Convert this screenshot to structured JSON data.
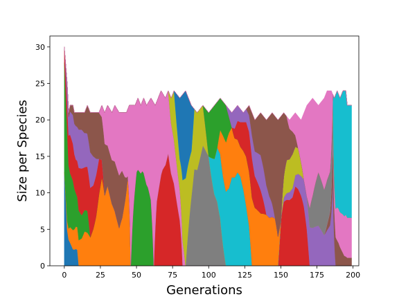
{
  "chart_data": {
    "type": "area",
    "stacked": true,
    "title": "",
    "xlabel": "Generations",
    "ylabel": "Size per Species",
    "xlim": [
      -10,
      204
    ],
    "ylim": [
      0,
      31.5
    ],
    "xticks": [
      0,
      25,
      50,
      75,
      100,
      125,
      150,
      175,
      200
    ],
    "yticks": [
      0,
      5,
      10,
      15,
      20,
      25,
      30
    ],
    "grid": false,
    "legend": "none",
    "total_population": [
      {
        "x": 0,
        "y": 30
      },
      {
        "x": 2,
        "y": 25
      },
      {
        "x": 3,
        "y": 21
      },
      {
        "x": 4,
        "y": 22
      },
      {
        "x": 6,
        "y": 22
      },
      {
        "x": 7,
        "y": 21
      },
      {
        "x": 14,
        "y": 21
      },
      {
        "x": 16,
        "y": 22
      },
      {
        "x": 18,
        "y": 21
      },
      {
        "x": 24,
        "y": 21
      },
      {
        "x": 26,
        "y": 22
      },
      {
        "x": 28,
        "y": 21
      },
      {
        "x": 30,
        "y": 22
      },
      {
        "x": 33,
        "y": 21
      },
      {
        "x": 35,
        "y": 22
      },
      {
        "x": 38,
        "y": 21
      },
      {
        "x": 43,
        "y": 21
      },
      {
        "x": 45,
        "y": 22
      },
      {
        "x": 49,
        "y": 22
      },
      {
        "x": 51,
        "y": 23
      },
      {
        "x": 53,
        "y": 22
      },
      {
        "x": 55,
        "y": 23
      },
      {
        "x": 57,
        "y": 22
      },
      {
        "x": 60,
        "y": 23
      },
      {
        "x": 63,
        "y": 22
      },
      {
        "x": 67,
        "y": 24
      },
      {
        "x": 70,
        "y": 23
      },
      {
        "x": 72,
        "y": 24
      },
      {
        "x": 74,
        "y": 23
      },
      {
        "x": 76,
        "y": 24
      },
      {
        "x": 80,
        "y": 23
      },
      {
        "x": 84,
        "y": 24
      },
      {
        "x": 88,
        "y": 22
      },
      {
        "x": 92,
        "y": 21
      },
      {
        "x": 96,
        "y": 22
      },
      {
        "x": 100,
        "y": 21
      },
      {
        "x": 104,
        "y": 22
      },
      {
        "x": 108,
        "y": 23
      },
      {
        "x": 112,
        "y": 22
      },
      {
        "x": 116,
        "y": 21
      },
      {
        "x": 120,
        "y": 22
      },
      {
        "x": 124,
        "y": 21
      },
      {
        "x": 128,
        "y": 22
      },
      {
        "x": 132,
        "y": 20
      },
      {
        "x": 136,
        "y": 21
      },
      {
        "x": 140,
        "y": 20
      },
      {
        "x": 144,
        "y": 21
      },
      {
        "x": 148,
        "y": 20
      },
      {
        "x": 152,
        "y": 21
      },
      {
        "x": 156,
        "y": 20
      },
      {
        "x": 160,
        "y": 21
      },
      {
        "x": 164,
        "y": 20
      },
      {
        "x": 168,
        "y": 22
      },
      {
        "x": 172,
        "y": 23
      },
      {
        "x": 176,
        "y": 22
      },
      {
        "x": 180,
        "y": 23
      },
      {
        "x": 182,
        "y": 24
      },
      {
        "x": 185,
        "y": 24
      },
      {
        "x": 187,
        "y": 23
      },
      {
        "x": 189,
        "y": 24
      },
      {
        "x": 191,
        "y": 23
      },
      {
        "x": 193,
        "y": 24
      },
      {
        "x": 195,
        "y": 24
      },
      {
        "x": 196,
        "y": 22
      },
      {
        "x": 199,
        "y": 22
      }
    ],
    "series": [
      {
        "color": "#1f77b4",
        "points": [
          {
            "x": 0,
            "y": 12
          },
          {
            "x": 2,
            "y": 4
          },
          {
            "x": 4,
            "y": 3
          },
          {
            "x": 6,
            "y": 2
          },
          {
            "x": 9,
            "y": 2
          },
          {
            "x": 10,
            "y": 0
          }
        ]
      },
      {
        "color": "#ff7f0e",
        "points": [
          {
            "x": 0,
            "y": 0
          },
          {
            "x": 4,
            "y": 2
          },
          {
            "x": 10,
            "y": 3
          },
          {
            "x": 14,
            "y": 4
          },
          {
            "x": 18,
            "y": 2
          },
          {
            "x": 22,
            "y": 3
          },
          {
            "x": 26,
            "y": 5
          },
          {
            "x": 28,
            "y": 3
          },
          {
            "x": 30,
            "y": 4
          },
          {
            "x": 34,
            "y": 3
          },
          {
            "x": 38,
            "y": 2
          },
          {
            "x": 40,
            "y": 3
          },
          {
            "x": 44,
            "y": 5
          },
          {
            "x": 46,
            "y": 0
          }
        ]
      },
      {
        "color": "#2ca02c",
        "points": [
          {
            "x": 0,
            "y": 14
          },
          {
            "x": 2,
            "y": 10
          },
          {
            "x": 4,
            "y": 7
          },
          {
            "x": 6,
            "y": 6
          },
          {
            "x": 8,
            "y": 4
          },
          {
            "x": 12,
            "y": 3
          },
          {
            "x": 16,
            "y": 2
          },
          {
            "x": 18,
            "y": 0
          },
          {
            "x": 46,
            "y": 0
          },
          {
            "x": 48,
            "y": 2
          },
          {
            "x": 50,
            "y": 4
          },
          {
            "x": 54,
            "y": 5
          },
          {
            "x": 58,
            "y": 4
          },
          {
            "x": 60,
            "y": 3
          },
          {
            "x": 62,
            "y": 0
          }
        ]
      },
      {
        "color": "#d62728",
        "points": [
          {
            "x": 0,
            "y": 2
          },
          {
            "x": 2,
            "y": 3
          },
          {
            "x": 4,
            "y": 5
          },
          {
            "x": 8,
            "y": 4
          },
          {
            "x": 12,
            "y": 6
          },
          {
            "x": 16,
            "y": 4
          },
          {
            "x": 20,
            "y": 3
          },
          {
            "x": 24,
            "y": 2
          },
          {
            "x": 28,
            "y": 0
          },
          {
            "x": 62,
            "y": 0
          },
          {
            "x": 64,
            "y": 3
          },
          {
            "x": 68,
            "y": 5
          },
          {
            "x": 72,
            "y": 6
          },
          {
            "x": 76,
            "y": 5
          },
          {
            "x": 80,
            "y": 3
          },
          {
            "x": 82,
            "y": 0
          },
          {
            "x": 148,
            "y": 0
          },
          {
            "x": 152,
            "y": 3
          },
          {
            "x": 156,
            "y": 5
          },
          {
            "x": 160,
            "y": 7
          },
          {
            "x": 164,
            "y": 5
          },
          {
            "x": 168,
            "y": 2
          },
          {
            "x": 170,
            "y": 0
          }
        ]
      },
      {
        "color": "#9467bd",
        "points": [
          {
            "x": 0,
            "y": 0
          },
          {
            "x": 2,
            "y": 2
          },
          {
            "x": 4,
            "y": 3
          },
          {
            "x": 8,
            "y": 4
          },
          {
            "x": 12,
            "y": 5
          },
          {
            "x": 16,
            "y": 3
          },
          {
            "x": 20,
            "y": 2
          },
          {
            "x": 24,
            "y": 0
          },
          {
            "x": 150,
            "y": 0
          },
          {
            "x": 160,
            "y": 1
          },
          {
            "x": 170,
            "y": 2
          },
          {
            "x": 176,
            "y": 3
          },
          {
            "x": 180,
            "y": 2
          },
          {
            "x": 186,
            "y": 2
          },
          {
            "x": 188,
            "y": 0
          }
        ]
      },
      {
        "color": "#8c564b",
        "points": [
          {
            "x": 0,
            "y": 0
          },
          {
            "x": 10,
            "y": 2
          },
          {
            "x": 20,
            "y": 3
          },
          {
            "x": 30,
            "y": 2
          },
          {
            "x": 40,
            "y": 3
          },
          {
            "x": 44,
            "y": 0
          },
          {
            "x": 180,
            "y": 0
          },
          {
            "x": 186,
            "y": 1
          },
          {
            "x": 190,
            "y": 2
          },
          {
            "x": 194,
            "y": 1
          },
          {
            "x": 199,
            "y": 1
          }
        ]
      },
      {
        "color": "#e377c2",
        "points": [
          {
            "x": 24,
            "y": 0
          },
          {
            "x": 30,
            "y": 2
          },
          {
            "x": 36,
            "y": 3
          },
          {
            "x": 42,
            "y": 4
          },
          {
            "x": 50,
            "y": 3
          },
          {
            "x": 56,
            "y": 4
          },
          {
            "x": 62,
            "y": 5
          },
          {
            "x": 68,
            "y": 4
          },
          {
            "x": 74,
            "y": 3
          },
          {
            "x": 80,
            "y": 2
          },
          {
            "x": 84,
            "y": 0
          },
          {
            "x": 186,
            "y": 0
          },
          {
            "x": 190,
            "y": 3
          },
          {
            "x": 194,
            "y": 4
          },
          {
            "x": 196,
            "y": 5
          },
          {
            "x": 199,
            "y": 5
          }
        ]
      },
      {
        "color": "#7f7f7f",
        "points": [
          {
            "x": 84,
            "y": 0
          },
          {
            "x": 88,
            "y": 3
          },
          {
            "x": 92,
            "y": 5
          },
          {
            "x": 96,
            "y": 6
          },
          {
            "x": 100,
            "y": 5
          },
          {
            "x": 104,
            "y": 4
          },
          {
            "x": 108,
            "y": 3
          },
          {
            "x": 112,
            "y": 0
          },
          {
            "x": 168,
            "y": 0
          },
          {
            "x": 172,
            "y": 2
          },
          {
            "x": 176,
            "y": 4
          },
          {
            "x": 180,
            "y": 3
          },
          {
            "x": 184,
            "y": 2
          },
          {
            "x": 188,
            "y": 0
          }
        ]
      },
      {
        "color": "#bcbd22",
        "points": [
          {
            "x": 72,
            "y": 0
          },
          {
            "x": 76,
            "y": 3
          },
          {
            "x": 80,
            "y": 2
          },
          {
            "x": 84,
            "y": 3
          },
          {
            "x": 88,
            "y": 2
          },
          {
            "x": 92,
            "y": 3
          },
          {
            "x": 96,
            "y": 2
          },
          {
            "x": 100,
            "y": 0
          },
          {
            "x": 150,
            "y": 0
          },
          {
            "x": 154,
            "y": 2
          },
          {
            "x": 158,
            "y": 3
          },
          {
            "x": 162,
            "y": 2
          },
          {
            "x": 166,
            "y": 0
          }
        ]
      },
      {
        "color": "#17becf",
        "points": [
          {
            "x": 100,
            "y": 0
          },
          {
            "x": 104,
            "y": 2
          },
          {
            "x": 108,
            "y": 4
          },
          {
            "x": 112,
            "y": 6
          },
          {
            "x": 116,
            "y": 8
          },
          {
            "x": 120,
            "y": 10
          },
          {
            "x": 124,
            "y": 8
          },
          {
            "x": 128,
            "y": 4
          },
          {
            "x": 130,
            "y": 0
          },
          {
            "x": 186,
            "y": 0
          },
          {
            "x": 188,
            "y": 6
          },
          {
            "x": 190,
            "y": 10
          },
          {
            "x": 193,
            "y": 12
          },
          {
            "x": 196,
            "y": 14
          },
          {
            "x": 199,
            "y": 14
          }
        ]
      },
      {
        "color": "#1f77b4",
        "points": [
          {
            "x": 76,
            "y": 0
          },
          {
            "x": 80,
            "y": 4
          },
          {
            "x": 84,
            "y": 3
          },
          {
            "x": 88,
            "y": 2
          },
          {
            "x": 90,
            "y": 0
          }
        ]
      },
      {
        "color": "#ff7f0e",
        "points": [
          {
            "x": 106,
            "y": 0
          },
          {
            "x": 110,
            "y": 3
          },
          {
            "x": 114,
            "y": 5
          },
          {
            "x": 118,
            "y": 4
          },
          {
            "x": 122,
            "y": 3
          },
          {
            "x": 126,
            "y": 5
          },
          {
            "x": 130,
            "y": 6
          },
          {
            "x": 134,
            "y": 5
          },
          {
            "x": 138,
            "y": 4
          },
          {
            "x": 142,
            "y": 3
          },
          {
            "x": 146,
            "y": 2
          },
          {
            "x": 150,
            "y": 0
          }
        ]
      },
      {
        "color": "#2ca02c",
        "points": [
          {
            "x": 96,
            "y": 0
          },
          {
            "x": 100,
            "y": 2
          },
          {
            "x": 104,
            "y": 3
          },
          {
            "x": 108,
            "y": 2
          },
          {
            "x": 112,
            "y": 3
          },
          {
            "x": 116,
            "y": 0
          }
        ]
      },
      {
        "color": "#d62728",
        "points": [
          {
            "x": 116,
            "y": 0
          },
          {
            "x": 120,
            "y": 2
          },
          {
            "x": 124,
            "y": 3
          },
          {
            "x": 128,
            "y": 4
          },
          {
            "x": 132,
            "y": 3
          },
          {
            "x": 136,
            "y": 2
          },
          {
            "x": 140,
            "y": 0
          }
        ]
      },
      {
        "color": "#9467bd",
        "points": [
          {
            "x": 112,
            "y": 0
          },
          {
            "x": 118,
            "y": 2
          },
          {
            "x": 124,
            "y": 1
          },
          {
            "x": 130,
            "y": 2
          },
          {
            "x": 136,
            "y": 3
          },
          {
            "x": 140,
            "y": 2
          },
          {
            "x": 146,
            "y": 0
          }
        ]
      },
      {
        "color": "#8c564b",
        "points": [
          {
            "x": 126,
            "y": 0
          },
          {
            "x": 132,
            "y": 3
          },
          {
            "x": 138,
            "y": 4
          },
          {
            "x": 142,
            "y": 5
          },
          {
            "x": 148,
            "y": 4
          },
          {
            "x": 152,
            "y": 3
          },
          {
            "x": 158,
            "y": 2
          },
          {
            "x": 162,
            "y": 0
          }
        ]
      },
      {
        "color": "#e377c2",
        "points": [
          {
            "x": 154,
            "y": 0
          },
          {
            "x": 160,
            "y": 2
          },
          {
            "x": 164,
            "y": 3
          },
          {
            "x": 168,
            "y": 5
          },
          {
            "x": 172,
            "y": 6
          },
          {
            "x": 176,
            "y": 5
          },
          {
            "x": 180,
            "y": 6
          },
          {
            "x": 184,
            "y": 4
          },
          {
            "x": 186,
            "y": 0
          }
        ]
      }
    ]
  }
}
